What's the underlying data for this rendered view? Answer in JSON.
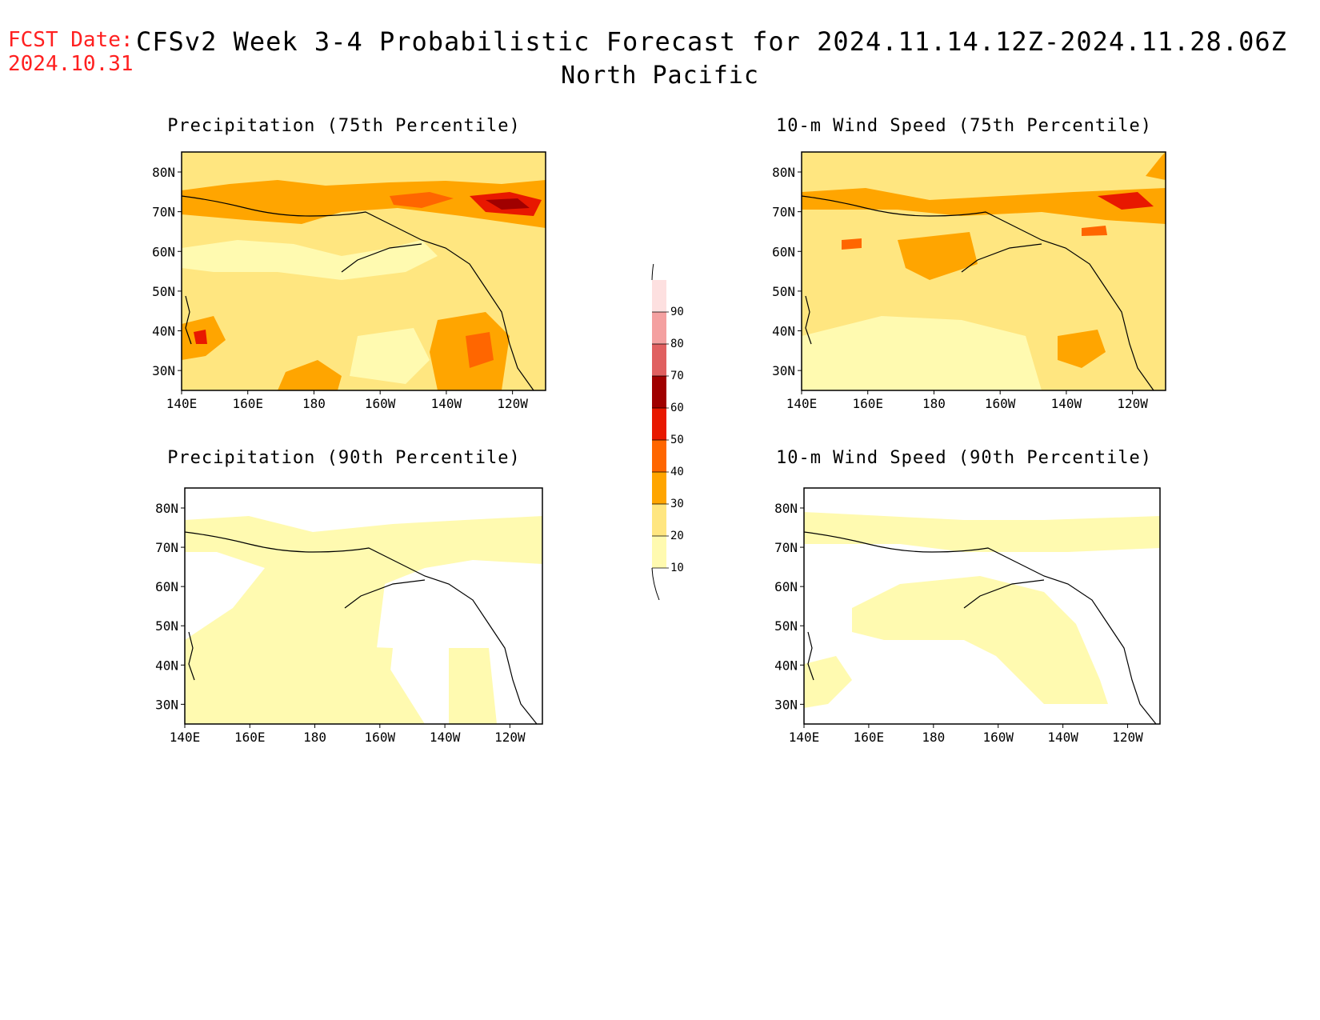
{
  "header": {
    "fcst_label": "FCST Date:",
    "fcst_value": "2024.10.31",
    "title": "CFSv2 Week 3-4 Probabilistic Forecast for 2024.11.14.12Z-2024.11.28.06Z",
    "subtitle": "North Pacific"
  },
  "axes": {
    "lon_labels": [
      "140E",
      "160E",
      "180",
      "160W",
      "140W",
      "120W"
    ],
    "lat_labels": [
      "80N",
      "70N",
      "60N",
      "50N",
      "40N",
      "30N"
    ]
  },
  "panels": [
    {
      "id": "precip75",
      "title": "Precipitation (75th Percentile)"
    },
    {
      "id": "wind75",
      "title": "10-m Wind Speed (75th Percentile)"
    },
    {
      "id": "precip90",
      "title": "Precipitation (90th Percentile)"
    },
    {
      "id": "wind90",
      "title": "10-m Wind Speed (90th Percentile)"
    }
  ],
  "colorbar": {
    "levels": [
      "10",
      "20",
      "30",
      "40",
      "50",
      "60",
      "70",
      "80",
      "90"
    ],
    "colors": [
      "#fffab0",
      "#ffe680",
      "#ffa500",
      "#ff6600",
      "#e81800",
      "#a00000",
      "#e06060",
      "#f4a0a0",
      "#fde0e0"
    ]
  }
}
